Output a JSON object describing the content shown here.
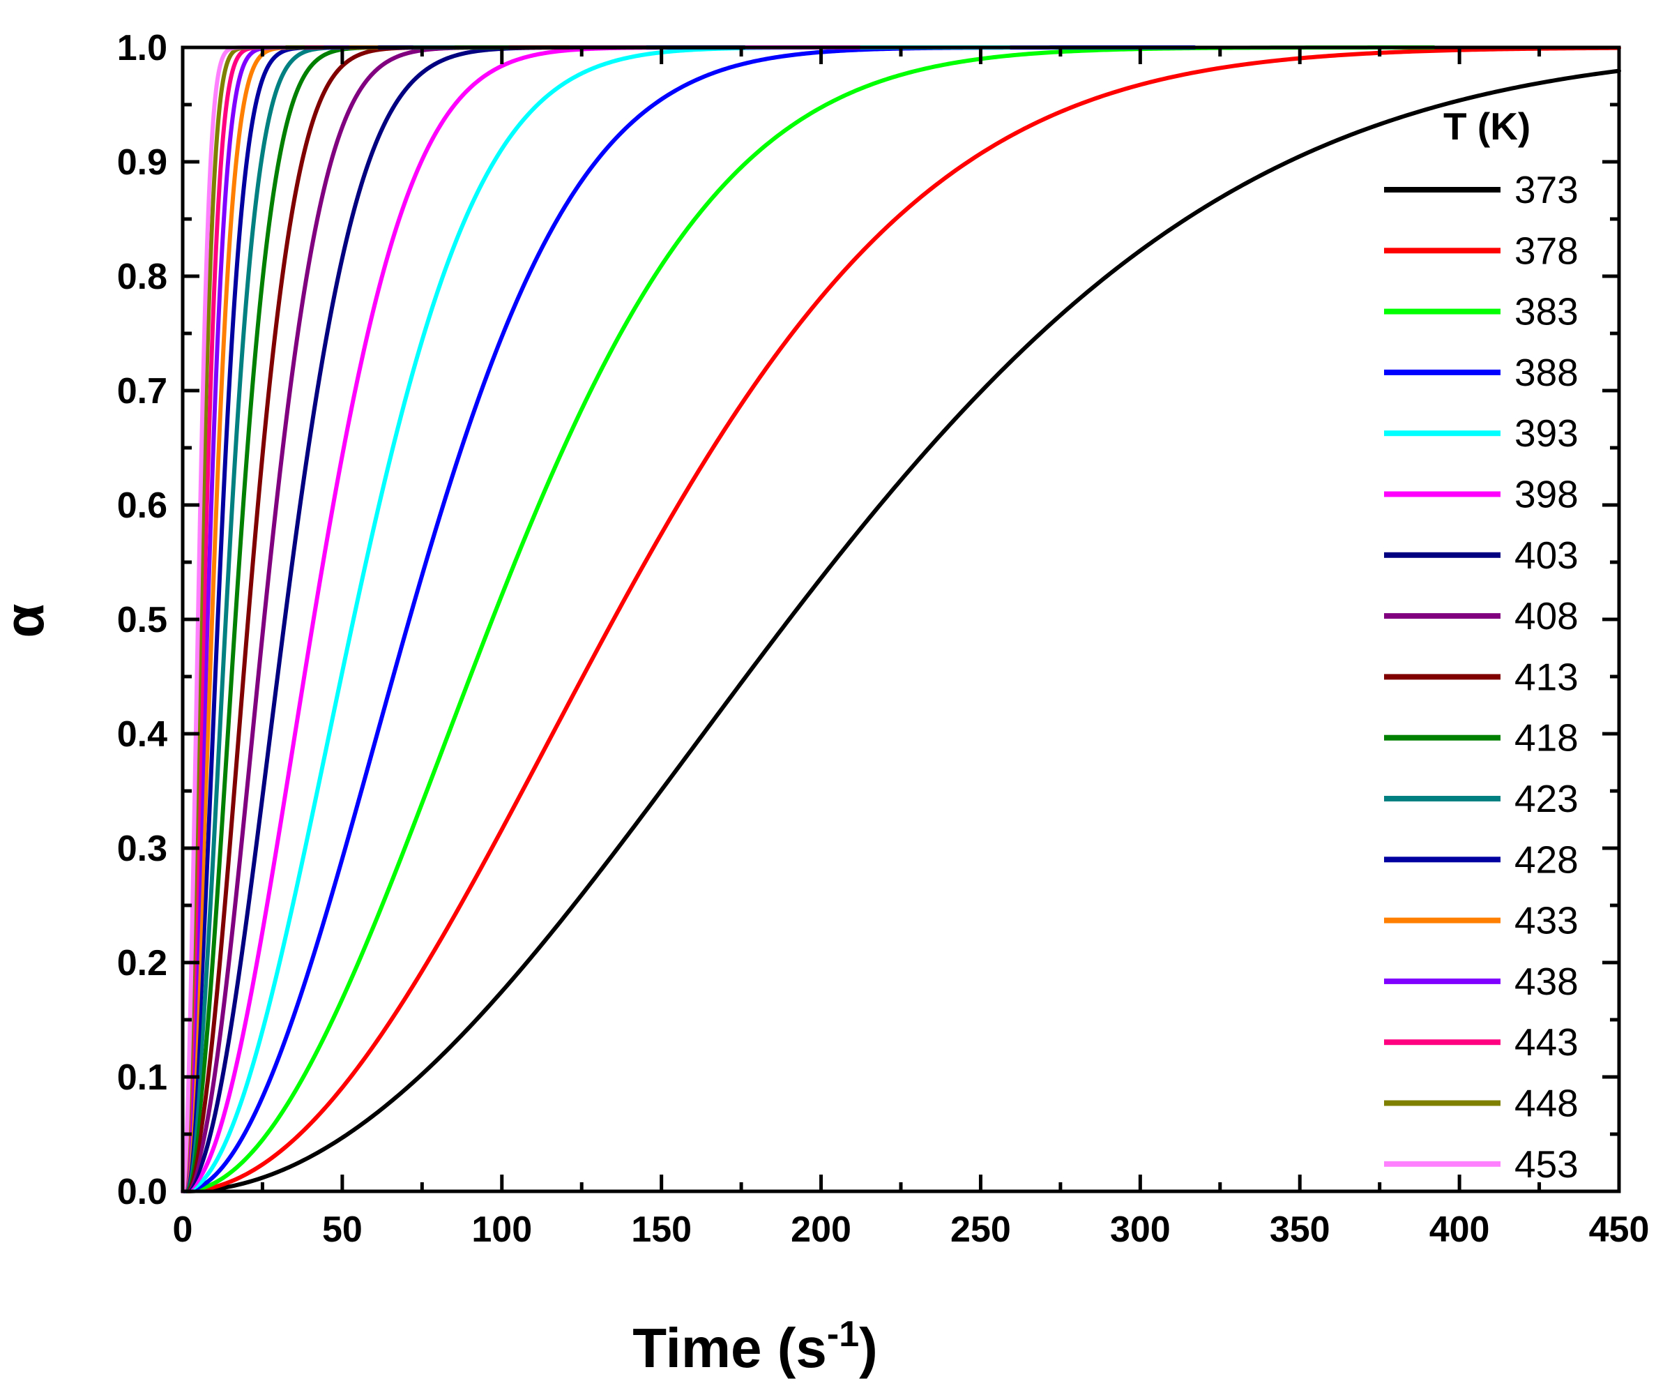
{
  "chart_data": {
    "type": "line",
    "title": "",
    "xlabel": "Time (s",
    "xlabel_superscript": "-1",
    "xlabel_close": ")",
    "ylabel": "α",
    "xlim": [
      0,
      450
    ],
    "ylim": [
      0.0,
      1.0
    ],
    "x_ticks": [
      0,
      50,
      100,
      150,
      200,
      250,
      300,
      350,
      400,
      450
    ],
    "x_tick_labels": [
      "0",
      "50",
      "100",
      "150",
      "200",
      "250",
      "300",
      "350",
      "400",
      "450"
    ],
    "y_ticks": [
      0.0,
      0.1,
      0.2,
      0.3,
      0.4,
      0.5,
      0.6,
      0.7,
      0.8,
      0.9,
      1.0
    ],
    "y_tick_labels": [
      "0.0",
      "0.1",
      "0.2",
      "0.3",
      "0.4",
      "0.5",
      "0.6",
      "0.7",
      "0.8",
      "0.9",
      "1.0"
    ],
    "grid": false,
    "legend_title": "T (K)",
    "legend_position": "right",
    "series": [
      {
        "name": "373",
        "color": "#000000",
        "t_half": 190,
        "x_end": 450
      },
      {
        "name": "378",
        "color": "#ff0000",
        "t_half": 135,
        "x_end": 450
      },
      {
        "name": "383",
        "color": "#00ff00",
        "t_half": 97,
        "x_end": 392
      },
      {
        "name": "388",
        "color": "#0000ff",
        "t_half": 71,
        "x_end": 317
      },
      {
        "name": "393",
        "color": "#00ffff",
        "t_half": 53.5,
        "x_end": 259
      },
      {
        "name": "398",
        "color": "#ff00ff",
        "t_half": 41,
        "x_end": 212
      },
      {
        "name": "403",
        "color": "#000080",
        "t_half": 32,
        "x_end": 176
      },
      {
        "name": "408",
        "color": "#800080",
        "t_half": 25.5,
        "x_end": 145
      },
      {
        "name": "413",
        "color": "#800000",
        "t_half": 20.5,
        "x_end": 121
      },
      {
        "name": "418",
        "color": "#008000",
        "t_half": 16.5,
        "x_end": 102
      },
      {
        "name": "423",
        "color": "#008080",
        "t_half": 13.5,
        "x_end": 85
      },
      {
        "name": "428",
        "color": "#0000a0",
        "t_half": 11,
        "x_end": 72
      },
      {
        "name": "433",
        "color": "#ff8000",
        "t_half": 9.2,
        "x_end": 61
      },
      {
        "name": "438",
        "color": "#8000ff",
        "t_half": 7.8,
        "x_end": 52
      },
      {
        "name": "443",
        "color": "#ff0080",
        "t_half": 6.6,
        "x_end": 44
      },
      {
        "name": "448",
        "color": "#808000",
        "t_half": 5.6,
        "x_end": 38
      },
      {
        "name": "453",
        "color": "#ff80ff",
        "t_half": 4.8,
        "x_end": 32
      }
    ],
    "curve_model": "alpha = 1 - exp(-ln2 * (t / t_half)^2)"
  }
}
